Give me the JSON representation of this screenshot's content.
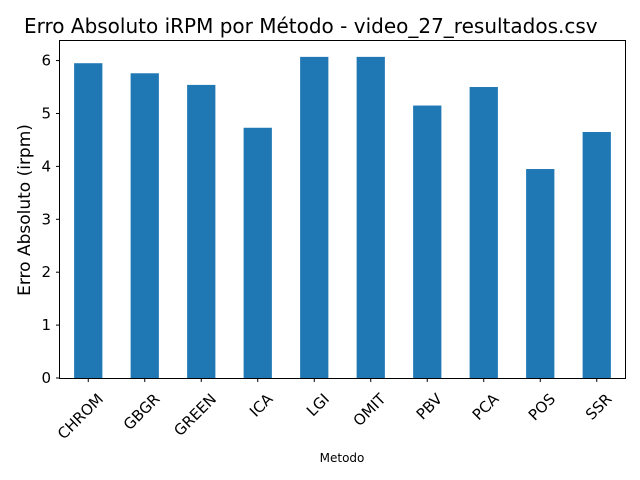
{
  "chart_data": {
    "type": "bar",
    "title": "Erro Absoluto iRPM por Método - video_27_resultados.csv",
    "xlabel": "Metodo",
    "ylabel": "Erro Absoluto (irpm)",
    "categories": [
      "CHROM",
      "GBGR",
      "GREEN",
      "ICA",
      "LGI",
      "OMIT",
      "PBV",
      "PCA",
      "POS",
      "SSR"
    ],
    "values": [
      5.95,
      5.76,
      5.54,
      4.73,
      6.07,
      6.07,
      5.15,
      5.5,
      3.95,
      4.65
    ],
    "ylim": [
      0,
      6.37
    ],
    "yticks": [
      0,
      1,
      2,
      3,
      4,
      5,
      6
    ],
    "grid": false,
    "bar_color": "#1f77b4"
  }
}
